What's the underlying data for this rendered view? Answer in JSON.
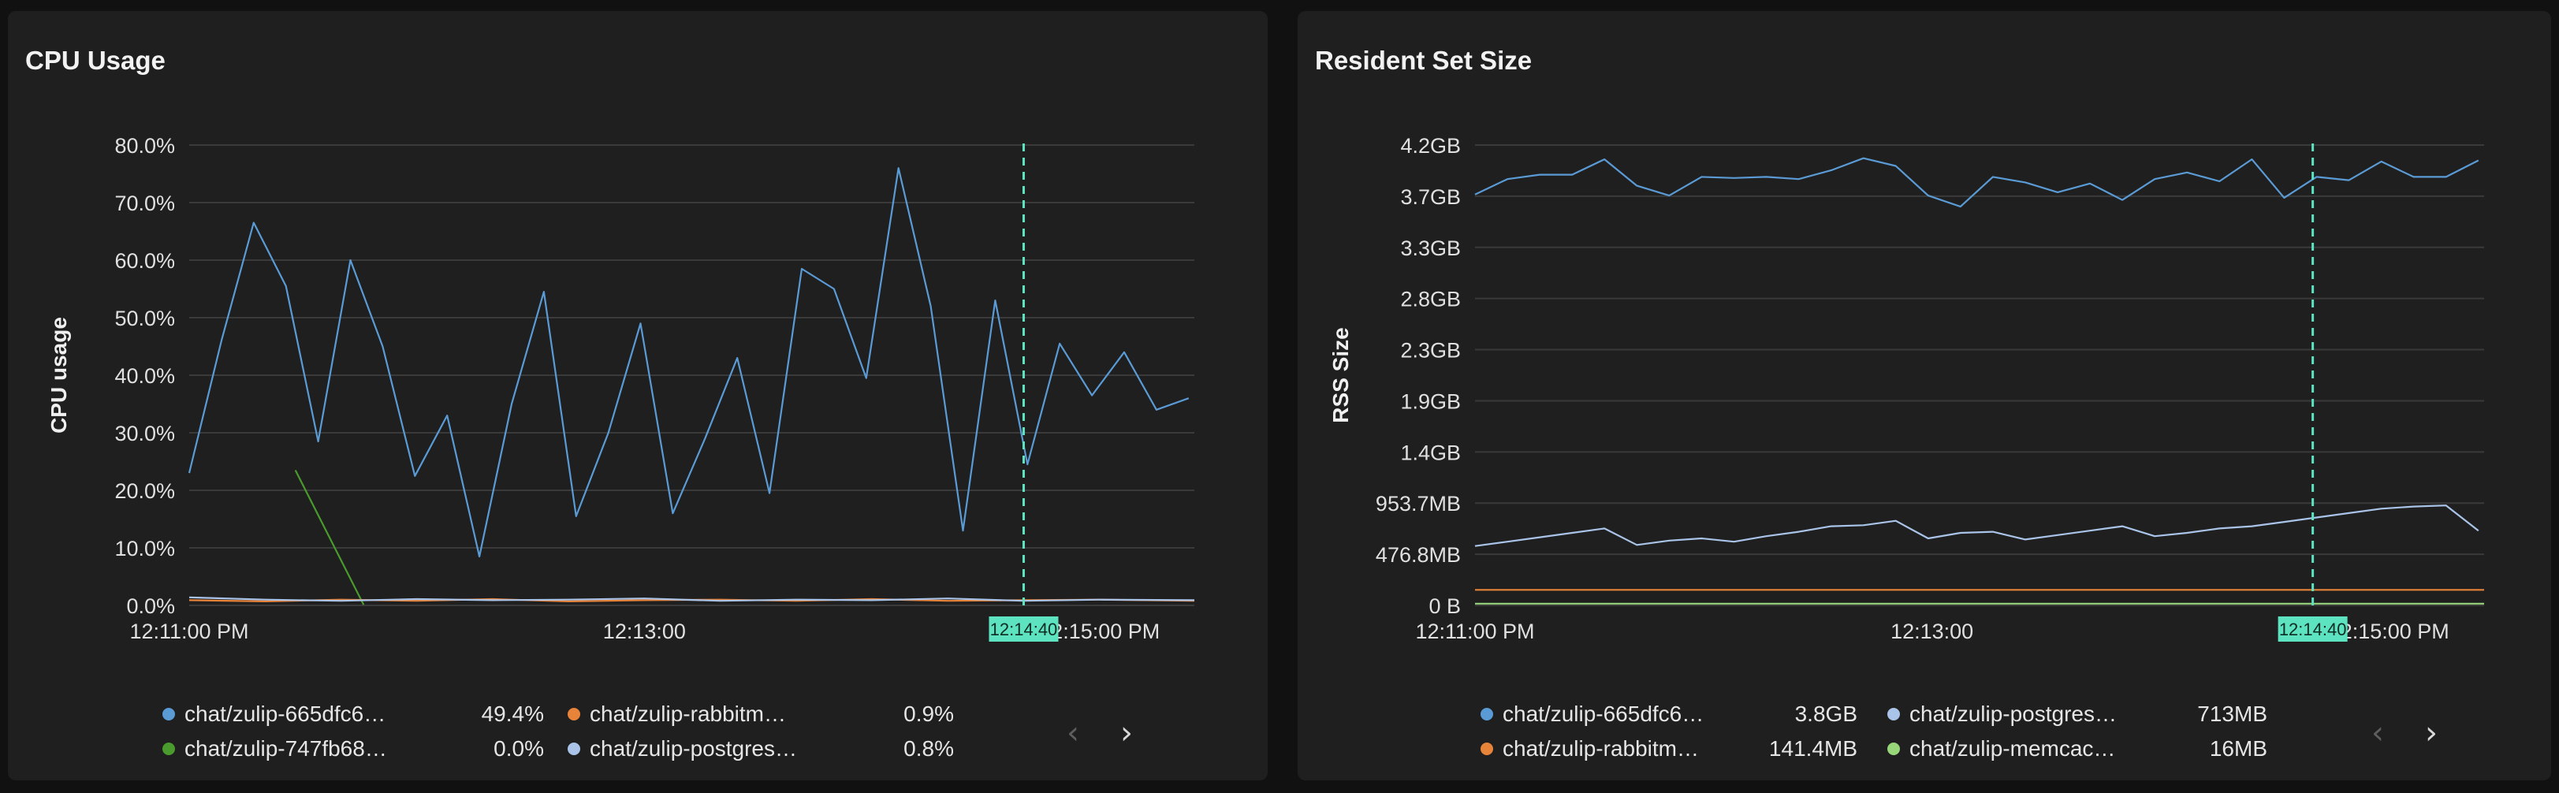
{
  "panels": {
    "cpu": {
      "title": "CPU Usage",
      "legend": [
        {
          "name": "chat/zulip-665dfc6…",
          "value": "49.4%",
          "color": "#5b9bd5"
        },
        {
          "name": "chat/zulip-rabbitm…",
          "value": "0.9%",
          "color": "#e8833a"
        },
        {
          "name": "chat/zulip-747fb68…",
          "value": "0.0%",
          "color": "#4a9a2e"
        },
        {
          "name": "chat/zulip-postgres…",
          "value": "0.8%",
          "color": "#a9c4e8"
        }
      ]
    },
    "rss": {
      "title": "Resident Set Size",
      "legend": [
        {
          "name": "chat/zulip-665dfc6…",
          "value": "3.8GB",
          "color": "#5b9bd5"
        },
        {
          "name": "chat/zulip-postgres…",
          "value": "713MB",
          "color": "#a9c4e8"
        },
        {
          "name": "chat/zulip-rabbitm…",
          "value": "141.4MB",
          "color": "#e8833a"
        },
        {
          "name": "chat/zulip-memcac…",
          "value": "16MB",
          "color": "#98d67a"
        }
      ]
    }
  },
  "pager": {
    "prev": "‹",
    "next": "›"
  },
  "chart_data": [
    {
      "type": "line",
      "title": "CPU Usage",
      "xlabel": "",
      "ylabel": "CPU usage",
      "ylim": [
        0,
        80
      ],
      "y_ticks": [
        "0.0%",
        "10.0%",
        "20.0%",
        "30.0%",
        "40.0%",
        "50.0%",
        "60.0%",
        "70.0%",
        "80.0%"
      ],
      "x_ticks": [
        "12:11:00 PM",
        "12:13:00",
        "12:15:00 PM"
      ],
      "x_tick_values": [
        0,
        120,
        240
      ],
      "xlim": [
        0,
        265
      ],
      "crosshair": {
        "x": 220,
        "label": "12:14:40",
        "color": "#5ee3c1"
      },
      "grid": true,
      "series": [
        {
          "name": "chat/zulip-665dfc6…",
          "color": "#5b9bd5",
          "x": [
            0,
            8.5,
            17,
            25.5,
            34,
            42.5,
            51,
            59.5,
            68,
            76.5,
            85,
            93.5,
            102,
            110.5,
            119,
            127.5,
            136,
            144.5,
            153,
            161.5,
            170,
            178.5,
            187,
            195.5,
            204,
            212.5,
            221,
            229.5,
            238,
            246.5,
            255,
            263.5
          ],
          "y": [
            23,
            46,
            66.5,
            55.5,
            28.5,
            60,
            45,
            22.5,
            33,
            8.5,
            35,
            54.5,
            15.5,
            30,
            49,
            16,
            29,
            43,
            19.5,
            58.5,
            55,
            39.5,
            76,
            52,
            13,
            53,
            24.5,
            45.5,
            36.5,
            44,
            34,
            36
          ]
        },
        {
          "name": "chat/zulip-747fb68…",
          "color": "#4a9a2e",
          "x": [
            28,
            46
          ],
          "y": [
            23.5,
            0.1
          ]
        },
        {
          "name": "chat/zulip-rabbitm…",
          "color": "#e8833a",
          "x": [
            0,
            20,
            40,
            60,
            80,
            100,
            120,
            140,
            160,
            180,
            200,
            220,
            240,
            265
          ],
          "y": [
            0.9,
            0.7,
            1.0,
            0.8,
            1.1,
            0.7,
            0.9,
            1.0,
            0.8,
            1.1,
            0.8,
            0.9,
            1.0,
            0.8
          ]
        },
        {
          "name": "chat/zulip-postgres…",
          "color": "#a9c4e8",
          "x": [
            0,
            20,
            40,
            60,
            80,
            100,
            120,
            140,
            160,
            180,
            200,
            220,
            240,
            265
          ],
          "y": [
            1.4,
            1.0,
            0.8,
            1.1,
            0.9,
            1.0,
            1.2,
            0.8,
            1.0,
            0.9,
            1.2,
            0.8,
            1.0,
            0.9
          ]
        }
      ]
    },
    {
      "type": "line",
      "title": "Resident Set Size",
      "xlabel": "",
      "ylabel": "RSS Size",
      "y_ticks": [
        "0 B",
        "476.8MB",
        "953.7MB",
        "1.4GB",
        "1.9GB",
        "2.3GB",
        "2.8GB",
        "3.3GB",
        "3.7GB",
        "4.2GB"
      ],
      "y_unit": "GB",
      "ylim": [
        0,
        4.19
      ],
      "x_ticks": [
        "12:11:00 PM",
        "12:13:00",
        "12:15:00 PM"
      ],
      "x_tick_values": [
        0,
        120,
        240
      ],
      "xlim": [
        0,
        265
      ],
      "crosshair": {
        "x": 220,
        "label": "12:14:40",
        "color": "#5ee3c1"
      },
      "grid": true,
      "series": [
        {
          "name": "chat/zulip-665dfc6…",
          "color": "#5b9bd5",
          "x": [
            0,
            8.5,
            17,
            25.5,
            34,
            42.5,
            51,
            59.5,
            68,
            76.5,
            85,
            93.5,
            102,
            110.5,
            119,
            127.5,
            136,
            144.5,
            153,
            161.5,
            170,
            178.5,
            187,
            195.5,
            204,
            212.5,
            221,
            229.5,
            238,
            246.5,
            255,
            263.5
          ],
          "y": [
            3.74,
            3.88,
            3.92,
            3.92,
            4.06,
            3.82,
            3.73,
            3.9,
            3.89,
            3.9,
            3.88,
            3.96,
            4.07,
            4.0,
            3.73,
            3.63,
            3.9,
            3.85,
            3.76,
            3.84,
            3.69,
            3.88,
            3.94,
            3.86,
            4.06,
            3.71,
            3.9,
            3.87,
            4.04,
            3.9,
            3.9,
            4.05
          ]
        },
        {
          "name": "chat/zulip-postgres…",
          "color": "#a9c4e8",
          "x": [
            0,
            8.5,
            17,
            25.5,
            34,
            42.5,
            51,
            59.5,
            68,
            76.5,
            85,
            93.5,
            102,
            110.5,
            119,
            127.5,
            136,
            144.5,
            153,
            161.5,
            170,
            178.5,
            187,
            195.5,
            204,
            212.5,
            221,
            229.5,
            238,
            246.5,
            255,
            263.5
          ],
          "y": [
            0.54,
            0.58,
            0.62,
            0.66,
            0.7,
            0.55,
            0.59,
            0.61,
            0.58,
            0.63,
            0.67,
            0.72,
            0.73,
            0.77,
            0.61,
            0.66,
            0.67,
            0.6,
            0.64,
            0.68,
            0.72,
            0.63,
            0.66,
            0.7,
            0.72,
            0.76,
            0.8,
            0.84,
            0.88,
            0.9,
            0.91,
            0.68
          ]
        },
        {
          "name": "chat/zulip-rabbitm…",
          "color": "#e8833a",
          "x": [
            0,
            265
          ],
          "y": [
            0.141,
            0.141
          ]
        },
        {
          "name": "chat/zulip-memcac…",
          "color": "#98d67a",
          "x": [
            0,
            265
          ],
          "y": [
            0.016,
            0.016
          ]
        }
      ]
    }
  ]
}
